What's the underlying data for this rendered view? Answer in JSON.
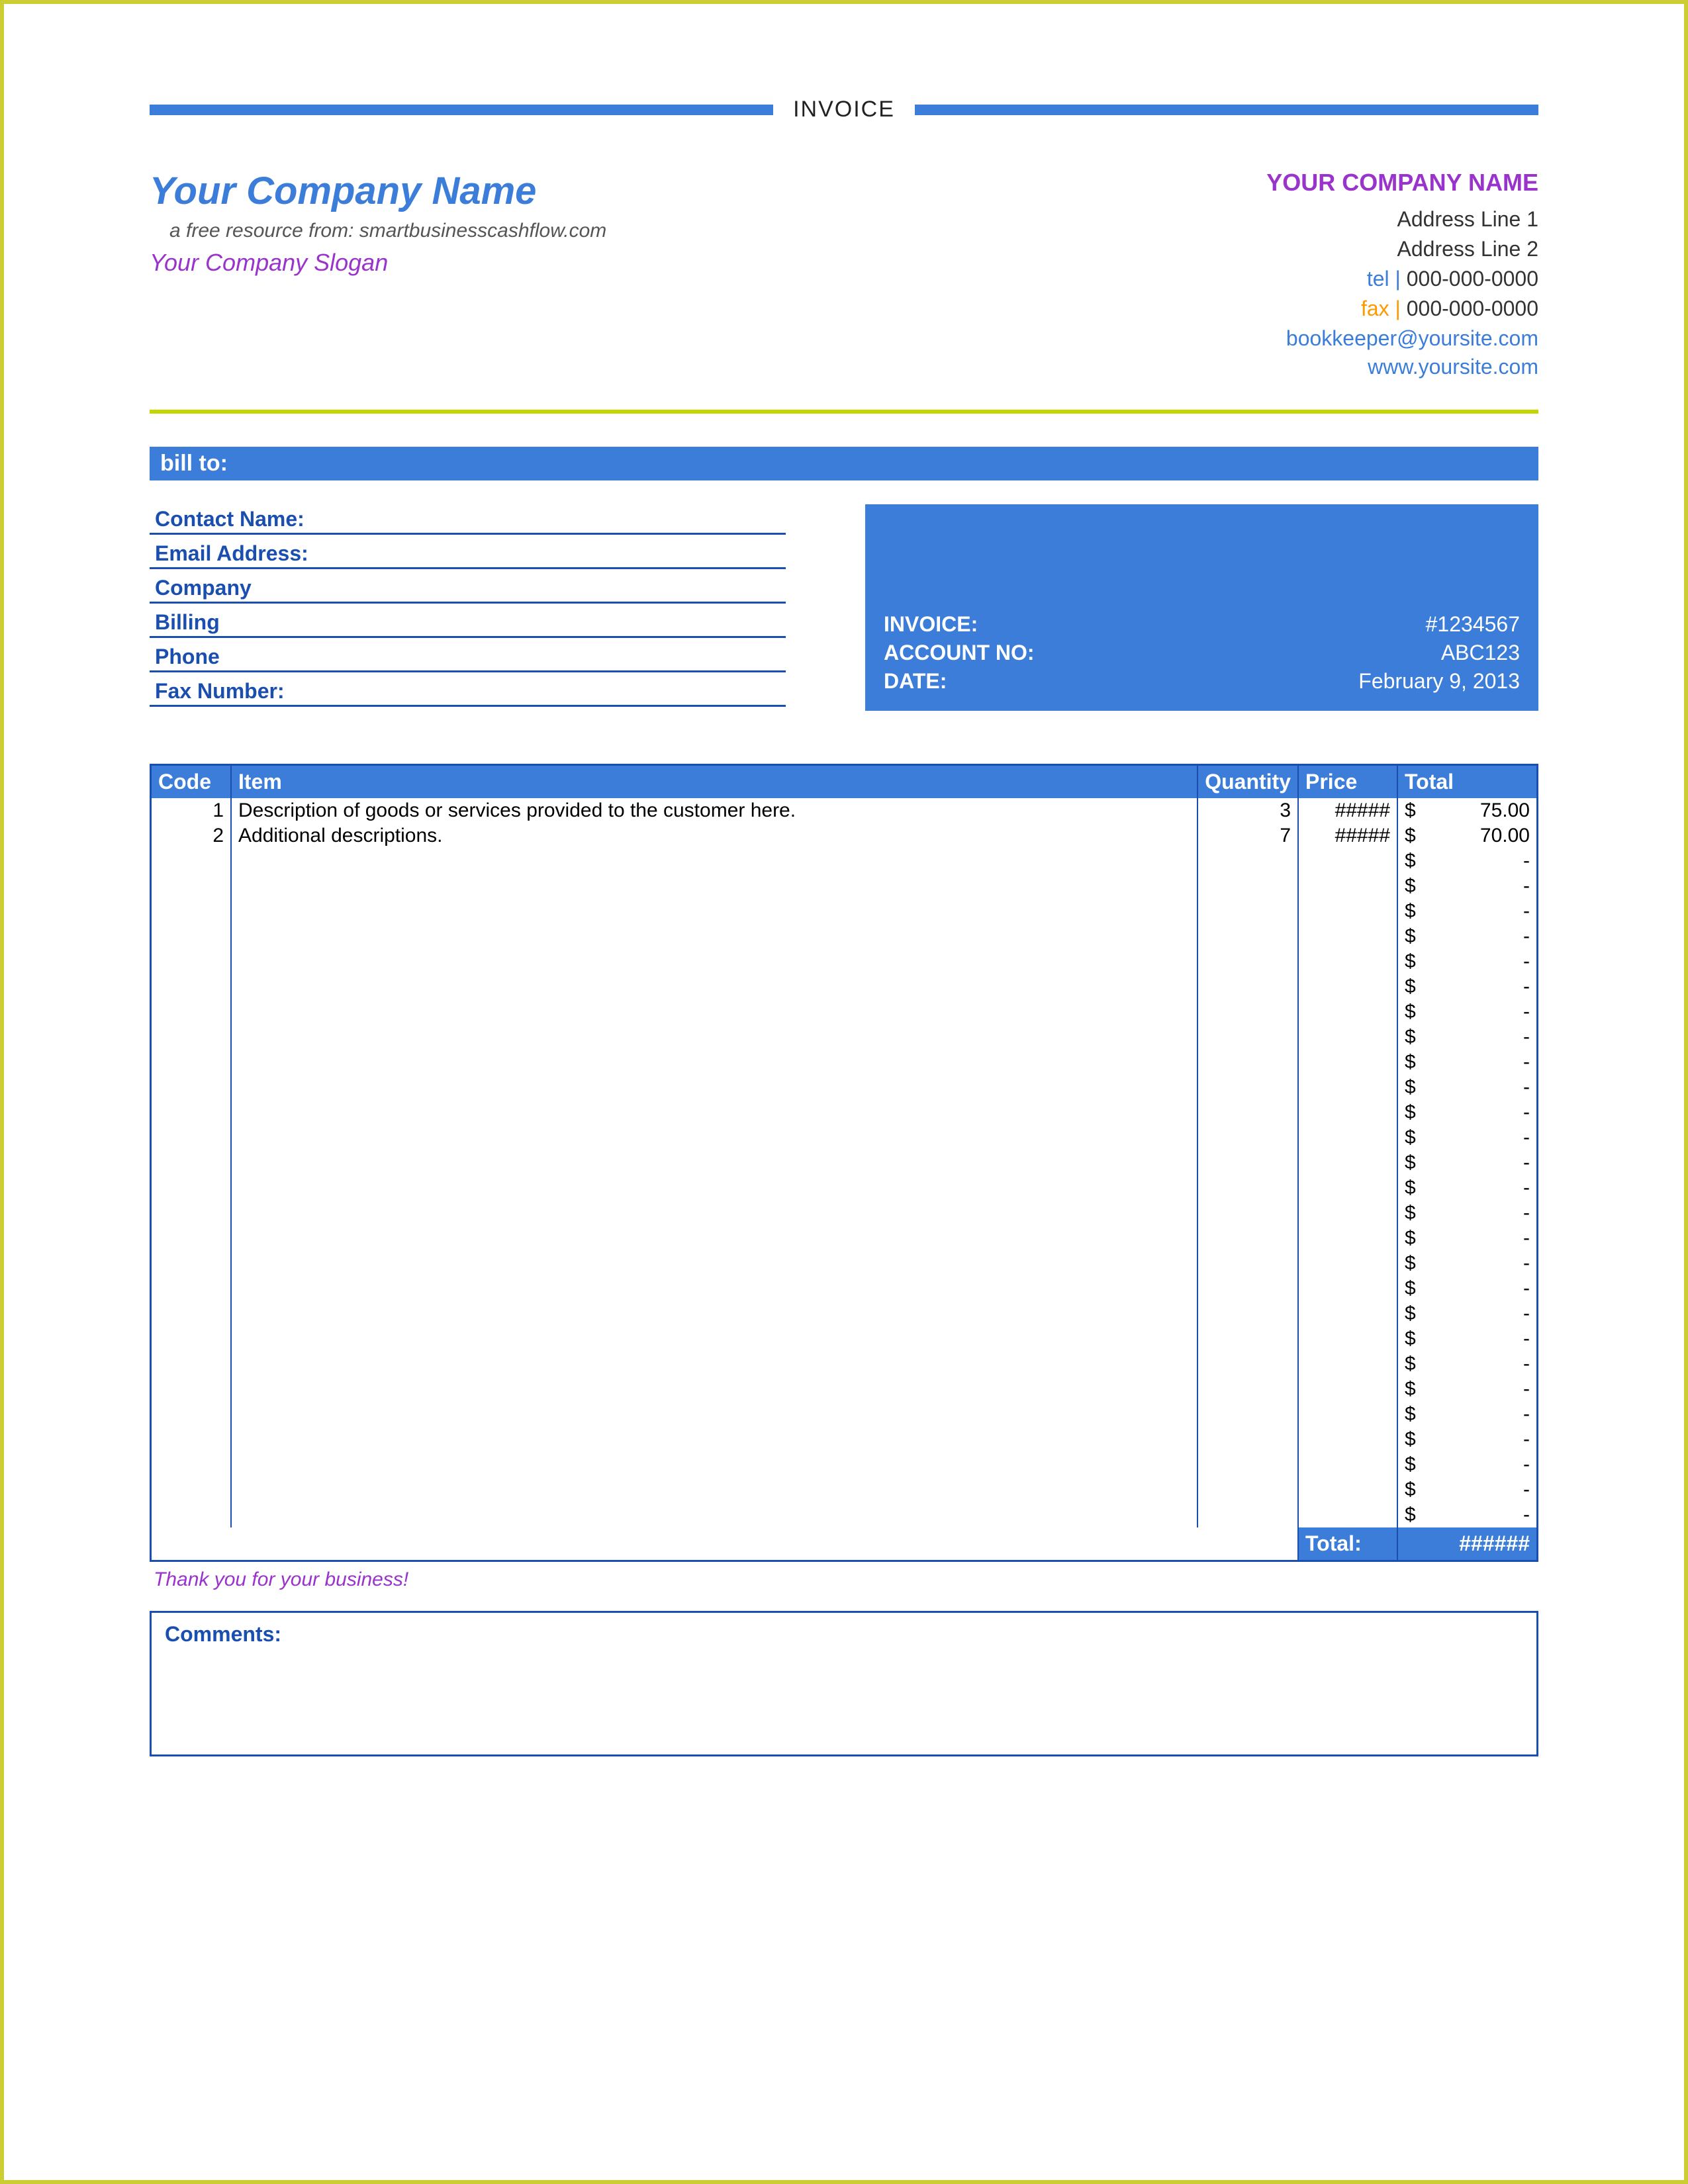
{
  "colors": {
    "primary_blue": "#3b7dd8",
    "dark_blue": "#1a4fb0",
    "purple": "#9933cc",
    "orange": "#ff9900",
    "green_rule": "#c3d600",
    "page_border": "#cccc33",
    "text": "#333333",
    "white": "#ffffff"
  },
  "title": "INVOICE",
  "header": {
    "left": {
      "company_name": "Your Company Name",
      "resource_line": "a free resource from: smartbusinesscashflow.com",
      "slogan": "Your Company Slogan"
    },
    "right": {
      "company_name": "YOUR COMPANY NAME",
      "address1": "Address Line 1",
      "address2": "Address Line 2",
      "tel_label": "tel |",
      "tel": "000-000-0000",
      "fax_label": "fax |",
      "fax": "000-000-0000",
      "email": "bookkeeper@yoursite.com",
      "website": "www.yoursite.com"
    }
  },
  "bill_to": {
    "bar_label": "bill to:",
    "fields": [
      "Contact Name:",
      "Email Address:",
      "Company",
      "Billing",
      "Phone",
      "Fax Number:"
    ],
    "summary": {
      "invoice_label": "INVOICE:",
      "invoice_value": "#1234567",
      "account_label": "ACCOUNT NO:",
      "account_value": "ABC123",
      "date_label": "DATE:",
      "date_value": "February 9, 2013"
    }
  },
  "items": {
    "columns": [
      "Code",
      "Item",
      "Quantity",
      "Price",
      "Total"
    ],
    "currency": "$",
    "empty_total": "-",
    "price_overflow": "#####",
    "rows": [
      {
        "code": "1",
        "item": "Description of goods or services provided to the customer here.",
        "qty": "3",
        "price": "#####",
        "total": "75.00"
      },
      {
        "code": "2",
        "item": "Additional descriptions.",
        "qty": "7",
        "price": "#####",
        "total": "70.00"
      }
    ],
    "empty_row_count": 27,
    "footer": {
      "thank_you": "Thank you for your business!",
      "total_label": "Total:",
      "total_value": "######"
    }
  },
  "comments_label": "Comments:"
}
